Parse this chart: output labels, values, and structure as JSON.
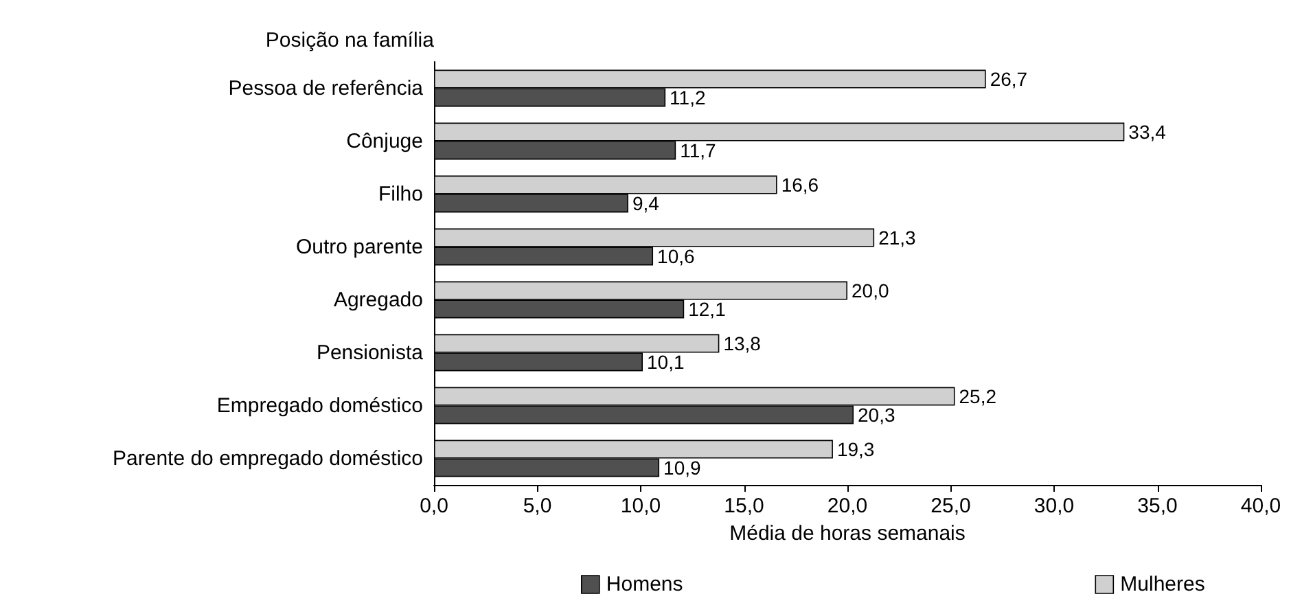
{
  "chart_data": {
    "type": "bar",
    "orientation": "horizontal",
    "ylabel": "Posição na família",
    "xlabel": "Média de horas semanais",
    "categories": [
      "Pessoa de referência",
      "Cônjuge",
      "Filho",
      "Outro parente",
      "Agregado",
      "Pensionista",
      "Empregado doméstico",
      "Parente do empregado doméstico"
    ],
    "series": [
      {
        "name": "Homens",
        "color": "#505050",
        "values": [
          11.2,
          11.7,
          9.4,
          10.6,
          12.1,
          10.1,
          20.3,
          10.9
        ],
        "value_labels": [
          "11,2",
          "11,7",
          "9,4",
          "10,6",
          "12,1",
          "10,1",
          "20,3",
          "10,9"
        ]
      },
      {
        "name": "Mulheres",
        "color": "#d0d0d0",
        "values": [
          26.7,
          33.4,
          16.6,
          21.3,
          20.0,
          13.8,
          25.2,
          19.3
        ],
        "value_labels": [
          "26,7",
          "33,4",
          "16,6",
          "21,3",
          "20,0",
          "13,8",
          "25,2",
          "19,3"
        ]
      }
    ],
    "xlim": [
      0,
      40
    ],
    "xticks": [
      {
        "value": 0,
        "label": "0,0"
      },
      {
        "value": 5,
        "label": "5,0"
      },
      {
        "value": 10,
        "label": "10,0"
      },
      {
        "value": 15,
        "label": "15,0"
      },
      {
        "value": 20,
        "label": "20,0"
      },
      {
        "value": 25,
        "label": "25,0"
      },
      {
        "value": 30,
        "label": "30,0"
      },
      {
        "value": 35,
        "label": "35,0"
      },
      {
        "value": 40,
        "label": "40,0"
      }
    ],
    "grid": false,
    "legend": "bottom"
  }
}
